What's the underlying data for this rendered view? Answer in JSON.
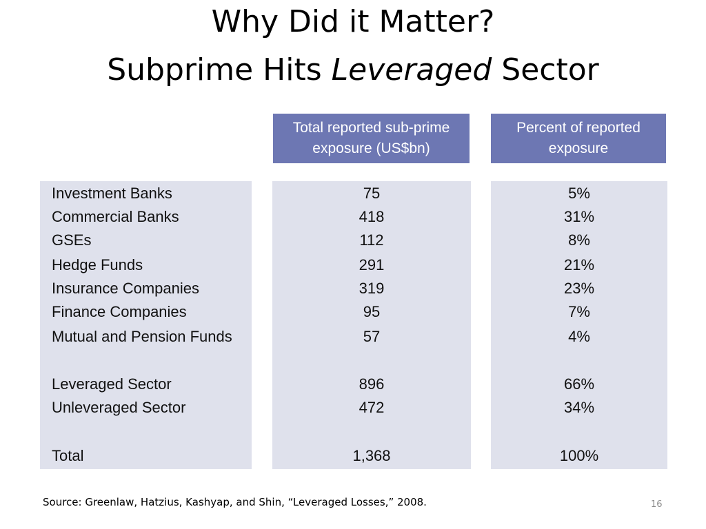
{
  "slide": {
    "title_line1": "Why Did it Matter?",
    "title_line2_prefix": "Subprime Hits ",
    "title_line2_emph": "Leveraged",
    "title_line2_suffix": " Sector",
    "source": "Source: Greenlaw, Hatzius, Kashyap, and Shin, “Leveraged Losses,” 2008.",
    "page_number": "16"
  },
  "table": {
    "header_exposure_line1": "Total reported sub-prime",
    "header_exposure_line2": "exposure (US$bn)",
    "header_percent_line1": "Percent of reported",
    "header_percent_line2": "exposure",
    "rows": [
      {
        "label": "Investment Banks",
        "exposure": "75",
        "percent": "5%"
      },
      {
        "label": "Commercial Banks",
        "exposure": "418",
        "percent": "31%"
      },
      {
        "label": "GSEs",
        "exposure": "112",
        "percent": "8%"
      },
      {
        "label": "Hedge Funds",
        "exposure": "291",
        "percent": "21%"
      },
      {
        "label": "Insurance Companies",
        "exposure": "319",
        "percent": "23%"
      },
      {
        "label": "Finance Companies",
        "exposure": "95",
        "percent": "7%"
      },
      {
        "label": "Mutual and Pension Funds",
        "exposure": "57",
        "percent": "4%"
      },
      {
        "label": "Leveraged Sector",
        "exposure": "896",
        "percent": "66%"
      },
      {
        "label": "Unleveraged Sector",
        "exposure": "472",
        "percent": "34%"
      },
      {
        "label": "Total",
        "exposure": "1,368",
        "percent": "100%"
      }
    ]
  },
  "colors": {
    "header_fill": "#6d77b3",
    "panel_fill": "#dfe1ec"
  }
}
